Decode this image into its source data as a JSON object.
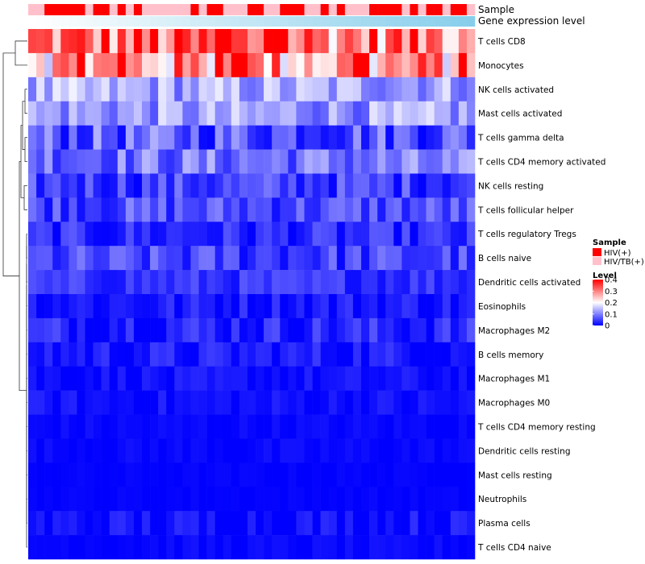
{
  "chart_data": {
    "type": "heatmap",
    "annotation_rows": [
      "Sample",
      "Gene expression level"
    ],
    "rows": [
      "T cells CD8",
      "Monocytes",
      "NK cells activated",
      "Mast cells activated",
      "T cells gamma delta",
      "T cells CD4 memory activated",
      "NK cells resting",
      "T cells follicular helper",
      "T cells regulatory  Tregs",
      "B cells naive",
      "Dendritic cells activated",
      "Eosinophils",
      "Macrophages M2",
      "B cells memory",
      "Macrophages M1",
      "Macrophages M0",
      "T cells CD4 memory resting",
      "Dendritic cells resting",
      "Mast cells resting",
      "Neutrophils",
      "Plasma cells",
      "T cells CD4 naive"
    ],
    "sample_groups": [
      "HIV(+)",
      "HIV/TB(+)"
    ],
    "sample_group_colors": [
      "#ff0000",
      "#ffc0cb"
    ],
    "sample_assignment": [
      1,
      1,
      0,
      0,
      0,
      0,
      0,
      1,
      0,
      0,
      1,
      0,
      1,
      0,
      1,
      1,
      1,
      1,
      1,
      1,
      0,
      1,
      0,
      0,
      1,
      1,
      1,
      0,
      0,
      1,
      1,
      0,
      0,
      0,
      1,
      1,
      0,
      1,
      0,
      1,
      1,
      1,
      0,
      0,
      0,
      0,
      1,
      0,
      1,
      0,
      0,
      1,
      0,
      0,
      1
    ],
    "expression_gradient": [
      "#ffffff",
      "#87ceeb"
    ],
    "value_range": [
      0,
      0.4
    ],
    "color_scale": [
      "#0000ff",
      "#ffffff",
      "#ff0000"
    ],
    "legend": {
      "sample_title": "Sample",
      "level_title": "Level",
      "level_ticks": [
        "0.4",
        "0.3",
        "0.2",
        "0.1",
        "0"
      ],
      "level_tick_values": [
        0.4,
        0.3,
        0.2,
        0.1,
        0
      ]
    },
    "row_means": [
      0.31,
      0.27,
      0.13,
      0.12,
      0.07,
      0.09,
      0.05,
      0.06,
      0.03,
      0.05,
      0.04,
      0.02,
      0.03,
      0.02,
      0.01,
      0.01,
      0.005,
      0.005,
      0.002,
      0.002,
      0.01,
      0.005
    ],
    "row_spread": [
      0.12,
      0.12,
      0.06,
      0.06,
      0.07,
      0.06,
      0.05,
      0.05,
      0.04,
      0.05,
      0.03,
      0.03,
      0.04,
      0.03,
      0.02,
      0.02,
      0.01,
      0.01,
      0.005,
      0.005,
      0.03,
      0.01
    ],
    "xlabel": "",
    "ylabel": ""
  }
}
